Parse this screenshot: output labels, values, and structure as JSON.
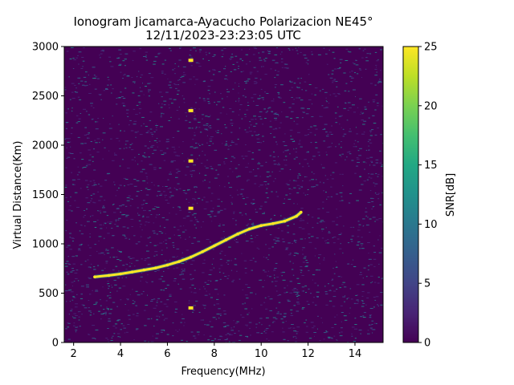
{
  "chart_data": {
    "type": "heatmap",
    "title_line1": "Ionogram Jicamarca-Ayacucho Polarizacion NE45°",
    "title_line2": "12/11/2023-23:23:05 UTC",
    "xlabel": "Frequency(MHz)",
    "ylabel": "Virtual Distance(Km)",
    "xlim": [
      1.6,
      15.2
    ],
    "ylim": [
      0,
      3000
    ],
    "xticks": [
      2,
      4,
      6,
      8,
      10,
      12,
      14
    ],
    "yticks": [
      0,
      500,
      1000,
      1500,
      2000,
      2500,
      3000
    ],
    "colorbar": {
      "label": "SNR[dB]",
      "range": [
        0,
        25
      ],
      "ticks": [
        0,
        5,
        10,
        15,
        20,
        25
      ],
      "colormap": "viridis"
    },
    "background_snr_db": 1,
    "echo_trace": {
      "description_snr_db": 25,
      "points": [
        [
          2.9,
          665
        ],
        [
          3.5,
          680
        ],
        [
          4.0,
          695
        ],
        [
          4.5,
          715
        ],
        [
          5.0,
          735
        ],
        [
          5.5,
          755
        ],
        [
          6.0,
          785
        ],
        [
          6.5,
          820
        ],
        [
          7.0,
          865
        ],
        [
          7.5,
          920
        ],
        [
          8.0,
          980
        ],
        [
          8.5,
          1040
        ],
        [
          9.0,
          1100
        ],
        [
          9.5,
          1150
        ],
        [
          10.0,
          1185
        ],
        [
          10.5,
          1205
        ],
        [
          11.0,
          1230
        ],
        [
          11.5,
          1280
        ],
        [
          11.7,
          1320
        ]
      ]
    },
    "multiple_echoes": [
      {
        "x": 7.0,
        "y": 350
      },
      {
        "x": 7.0,
        "y": 1360
      },
      {
        "x": 7.0,
        "y": 1840
      },
      {
        "x": 7.0,
        "y": 2350
      },
      {
        "x": 7.0,
        "y": 2860
      }
    ]
  }
}
